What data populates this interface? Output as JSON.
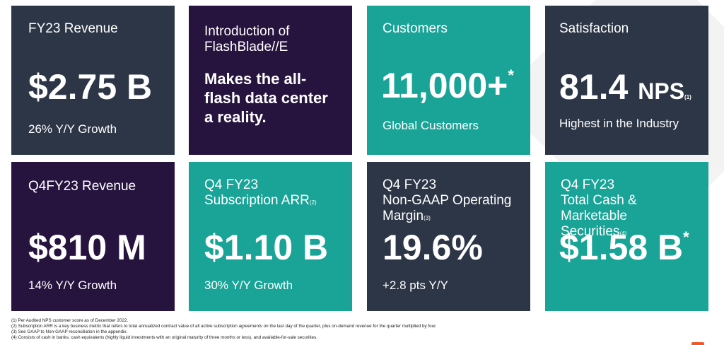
{
  "tiles": {
    "fy23_revenue": {
      "title": "FY23 Revenue",
      "value": "$2.75 B",
      "sub": "26% Y/Y Growth"
    },
    "flashblade": {
      "title_line1": "Introduction of",
      "title_line2": "FlashBlade//E",
      "body_line1": "Makes the all-",
      "body_line2": "flash data center",
      "body_line3": "a reality."
    },
    "customers": {
      "title": "Customers",
      "value": "11,000+",
      "marker": "*",
      "sub": "Global Customers"
    },
    "satisfaction": {
      "title": "Satisfaction",
      "value": "81.4",
      "unit": "NPS",
      "footnote": "(1)",
      "sub": "Highest in the Industry"
    },
    "q4_revenue": {
      "title": "Q4FY23 Revenue",
      "value": "$810 M",
      "sub": "14% Y/Y Growth"
    },
    "subscription": {
      "title_line1": "Q4 FY23",
      "title_line2": "Subscription ARR",
      "footnote": "(2)",
      "value": "$1.10 B",
      "sub": "30% Y/Y Growth"
    },
    "margin": {
      "title_line1": "Q4 FY23",
      "title_line2": "Non-GAAP Operating",
      "title_line3": "Margin",
      "footnote": "(3)",
      "value": "19.6%",
      "sub": "+2.8 pts Y/Y"
    },
    "cash": {
      "title_line1": "Q4 FY23",
      "title_line2": "Total Cash & Marketable",
      "title_line3": "Securities",
      "footnote": "(4)",
      "value": "$1.58 B",
      "marker": "*"
    }
  },
  "footnotes": [
    "(1) Per Audited NPS customer score as of December 2022.",
    "(2) Subscription ARR is a key business metric that refers to total annualized contract value of all active subscription agreements on the last day of the quarter, plus on-demand revenue for the quarter multiplied by four.",
    "(3) See GAAP to Non-GAAP reconciliation in the appendix.",
    "(4) Consists of cash in banks, cash equivalents (highly liquid investments with an original maturity of three months or less), and available-for-sale securities."
  ],
  "colors": {
    "dark": "#2d3646",
    "purple": "#26143f",
    "teal": "#1aa397",
    "accent": "#f05a28"
  }
}
